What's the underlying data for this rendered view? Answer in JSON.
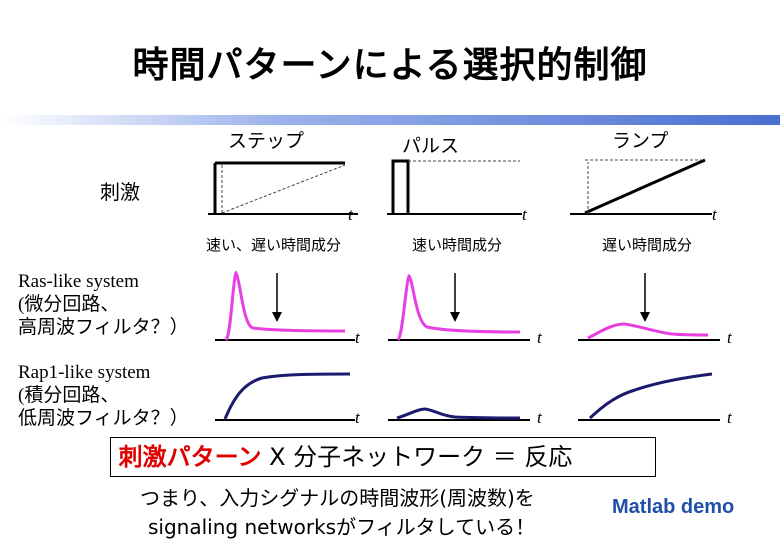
{
  "title": "時間パターンによる選択的制御",
  "stimulus_label": "刺激",
  "columns": [
    {
      "name": "ステップ",
      "speed": "速い、遅い時間成分"
    },
    {
      "name": "パルス",
      "speed": "速い時間成分"
    },
    {
      "name": "ランプ",
      "speed": "遅い時間成分"
    }
  ],
  "axis_t": "t",
  "rows": [
    {
      "label_lines": [
        "Ras-like system",
        "(微分回路、",
        "高周波フィルタ？）"
      ],
      "color": "#e83fe0"
    },
    {
      "label_lines": [
        "Rap1-like system",
        "(積分回路、",
        "低周波フィルタ？）"
      ],
      "color": "#1a1a6e"
    }
  ],
  "formula": {
    "red": "刺激パターン",
    "rest": " X 分子ネットワーク ＝ 反応"
  },
  "bottom_lines": [
    "つまり、入力シグナルの時間波形(周波数)を",
    "signaling networksがフィルタしている！"
  ],
  "matlab": "Matlab demo",
  "colors": {
    "bar_blue": "#4a6fd0",
    "ras": "#e83fe0",
    "rap1": "#1a1a6e"
  }
}
